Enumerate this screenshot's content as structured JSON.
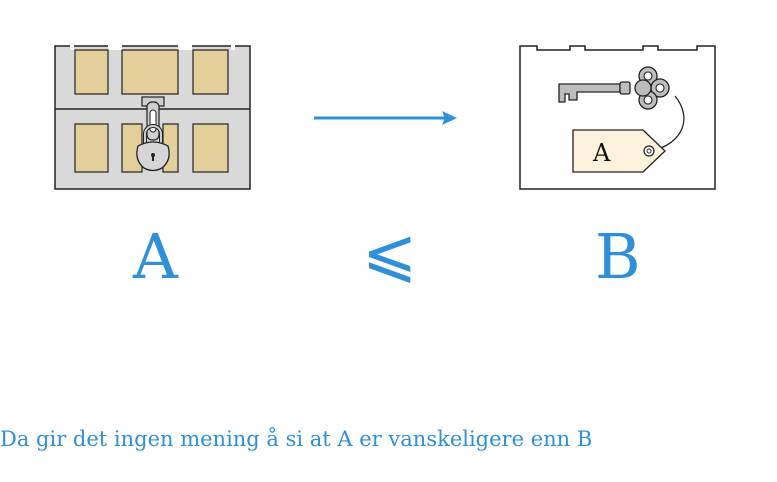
{
  "left_label": "A",
  "relation_symbol": "⩽",
  "right_label": "B",
  "tag_label": "A",
  "caption": "Da gir det ingen mening å si at A er vanskeligere enn B",
  "colors": {
    "accent": "#2f8fd8",
    "chest_frame": "#d9d9d9",
    "chest_panel": "#e3cf9a",
    "tag_fill": "#fdf3dc",
    "key_fill": "#bdbdbd"
  },
  "icons": {
    "left": "locked-chest-icon",
    "arrow": "arrow-right-icon",
    "right": "open-box-with-key-icon"
  }
}
